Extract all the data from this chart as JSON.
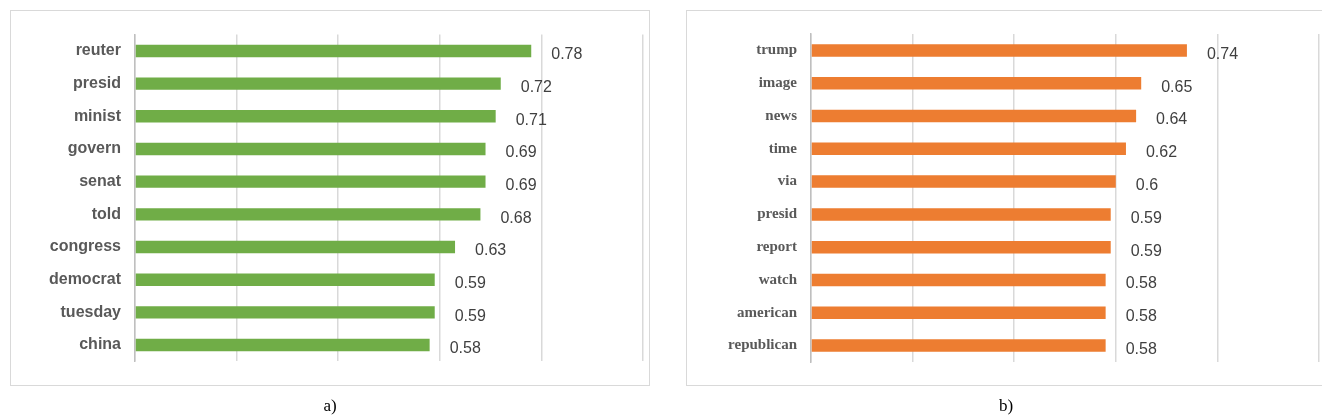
{
  "chart_data": [
    {
      "type": "bar",
      "orientation": "horizontal",
      "categories": [
        "reuter",
        "presid",
        "minist",
        "govern",
        "senat",
        "told",
        "congress",
        "democrat",
        "tuesday",
        "china"
      ],
      "values": [
        0.78,
        0.72,
        0.71,
        0.69,
        0.69,
        0.68,
        0.63,
        0.59,
        0.59,
        0.58
      ],
      "color": "#70ad47",
      "xlim": [
        0,
        1
      ],
      "xticks": [
        {
          "value": 0,
          "label": null
        },
        {
          "value": 0.2,
          "label": null
        },
        {
          "value": 0.4,
          "label": null
        },
        {
          "value": 0.6,
          "label": null
        },
        {
          "value": 0.8,
          "label": null
        },
        {
          "value": 1,
          "label": null
        }
      ],
      "grid": "x",
      "tick_labels": "y",
      "data_labels": true,
      "annotations": [
        "a)"
      ]
    },
    {
      "type": "bar",
      "orientation": "horizontal",
      "categories": [
        "trump",
        "image",
        "news",
        "time",
        "via",
        "presid",
        "report",
        "watch",
        "american",
        "republican"
      ],
      "values": [
        0.74,
        0.65,
        0.64,
        0.62,
        0.6,
        0.59,
        0.59,
        0.58,
        0.58,
        0.58
      ],
      "color": "#ed7d31",
      "xlim": [
        0,
        1
      ],
      "xticks": [
        {
          "value": 0,
          "label": null
        },
        {
          "value": 0.2,
          "label": null
        },
        {
          "value": 0.4,
          "label": null
        },
        {
          "value": 0.6,
          "label": null
        },
        {
          "value": 0.8,
          "label": null
        },
        {
          "value": 1,
          "label": null
        }
      ],
      "grid": "x",
      "tick_labels": "y",
      "data_labels": true,
      "annotations": [
        "b)"
      ]
    }
  ]
}
